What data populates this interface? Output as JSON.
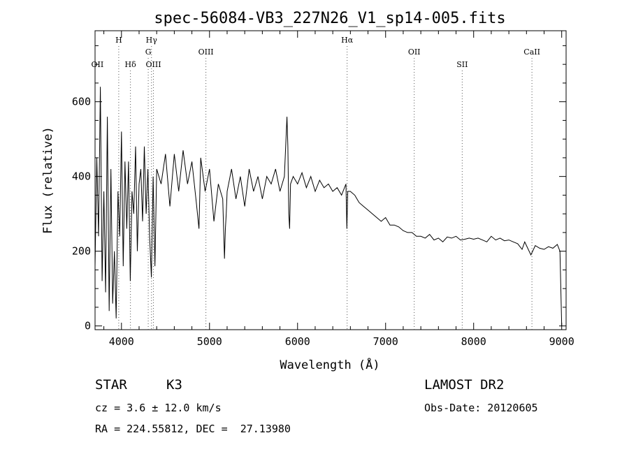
{
  "chart_data": {
    "type": "line",
    "title": "spec-56084-VB3_227N26_V1_sp14-005.fits",
    "xlabel": "Wavelength (Å)",
    "ylabel": "Flux (relative)",
    "xlim": [
      3700,
      9050
    ],
    "ylim": [
      -10,
      790
    ],
    "xticks": [
      4000,
      5000,
      6000,
      7000,
      8000,
      9000
    ],
    "yticks": [
      0,
      200,
      400,
      600
    ],
    "grid": false,
    "series": [
      {
        "x": [
          3700,
          3720,
          3740,
          3760,
          3780,
          3800,
          3820,
          3840,
          3860,
          3880,
          3900,
          3920,
          3940,
          3960,
          3980,
          4000,
          4020,
          4040,
          4060,
          4080,
          4100,
          4120,
          4140,
          4160,
          4180,
          4200,
          4220,
          4240,
          4260,
          4280,
          4300,
          4320,
          4340,
          4360,
          4380,
          4400,
          4450,
          4500,
          4550,
          4600,
          4650,
          4700,
          4750,
          4800,
          4850,
          4880,
          4900,
          4950,
          5000,
          5050,
          5100,
          5150,
          5170,
          5180,
          5190,
          5200,
          5250,
          5300,
          5350,
          5400,
          5450,
          5500,
          5550,
          5600,
          5650,
          5700,
          5750,
          5800,
          5850,
          5880,
          5890,
          5900,
          5910,
          5920,
          5950,
          6000,
          6050,
          6100,
          6150,
          6200,
          6250,
          6300,
          6350,
          6400,
          6450,
          6500,
          6550,
          6560,
          6570,
          6600,
          6650,
          6700,
          6750,
          6800,
          6850,
          6900,
          6950,
          7000,
          7050,
          7100,
          7150,
          7200,
          7250,
          7300,
          7350,
          7400,
          7450,
          7500,
          7550,
          7600,
          7650,
          7700,
          7750,
          7800,
          7850,
          7900,
          7950,
          8000,
          8050,
          8100,
          8150,
          8200,
          8250,
          8300,
          8350,
          8400,
          8450,
          8500,
          8550,
          8580,
          8600,
          8650,
          8700,
          8750,
          8800,
          8850,
          8900,
          8950,
          8980,
          9000
        ],
        "y": [
          160,
          450,
          240,
          640,
          120,
          360,
          90,
          560,
          40,
          420,
          60,
          200,
          20,
          360,
          240,
          520,
          160,
          440,
          260,
          440,
          120,
          360,
          300,
          480,
          200,
          380,
          420,
          280,
          480,
          300,
          420,
          240,
          130,
          400,
          160,
          420,
          380,
          460,
          320,
          460,
          360,
          470,
          380,
          440,
          330,
          260,
          450,
          360,
          420,
          280,
          380,
          340,
          180,
          260,
          300,
          360,
          420,
          340,
          400,
          320,
          420,
          360,
          400,
          340,
          400,
          380,
          420,
          360,
          400,
          560,
          480,
          300,
          260,
          380,
          400,
          380,
          410,
          370,
          400,
          360,
          390,
          370,
          380,
          360,
          370,
          350,
          380,
          260,
          360,
          360,
          350,
          330,
          320,
          310,
          300,
          290,
          280,
          290,
          270,
          270,
          265,
          255,
          250,
          250,
          240,
          240,
          235,
          245,
          230,
          235,
          225,
          238,
          235,
          240,
          230,
          232,
          235,
          232,
          235,
          230,
          225,
          240,
          230,
          235,
          228,
          230,
          225,
          220,
          205,
          225,
          215,
          190,
          215,
          208,
          205,
          212,
          208,
          218,
          200,
          0
        ]
      }
    ],
    "lines": [
      {
        "label": "OII",
        "wave": 3727,
        "row": 3,
        "show_line": false
      },
      {
        "label": "H",
        "wave": 3969,
        "row": 1,
        "show_line": true
      },
      {
        "label": "Hδ",
        "wave": 4102,
        "row": 3,
        "show_line": true
      },
      {
        "label": "Hγ",
        "wave": 4341,
        "row": 1,
        "show_line": true
      },
      {
        "label": "G",
        "wave": 4304,
        "row": 2,
        "show_line": true
      },
      {
        "label": "OIII",
        "wave": 4363,
        "row": 3,
        "show_line": true
      },
      {
        "label": "OIII",
        "wave": 4959,
        "row": 2,
        "show_line": true
      },
      {
        "label": "Hα",
        "wave": 6563,
        "row": 1,
        "show_line": true
      },
      {
        "label": "OII",
        "wave": 7325,
        "row": 2,
        "show_line": true
      },
      {
        "label": "SII",
        "wave": 7870,
        "row": 3,
        "show_line": true
      },
      {
        "label": "CaII",
        "wave": 8662,
        "row": 2,
        "show_line": true
      }
    ]
  },
  "info": {
    "class_label": "STAR",
    "subclass": "K3",
    "survey": "LAMOST DR2",
    "cz": "cz = 3.6 ± 12.0 km/s",
    "obs_date": "Obs-Date: 20120605",
    "radec": "RA = 224.55812, DEC =  27.13980"
  }
}
